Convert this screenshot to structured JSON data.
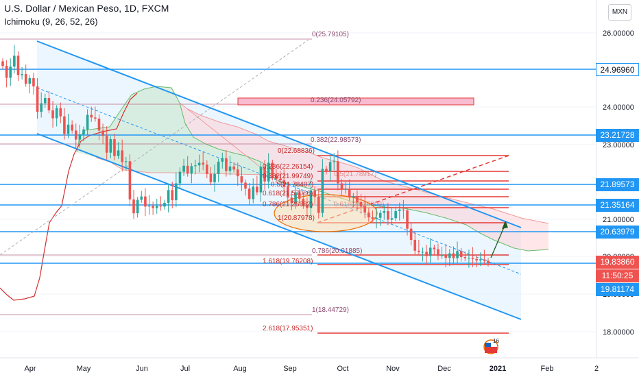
{
  "header": {
    "title": "U.S. Dollar / Mexican Peso, 1D, FXCM",
    "indicator": "Ichimoku (9, 26, 52, 26)",
    "currency": "MXN"
  },
  "colors": {
    "channel": "#2196f3",
    "fib": "#e53935",
    "cloud_bull": "#4caf50",
    "cloud_bear": "#f44336",
    "candle_up": "#26a69a",
    "candle_down": "#ef5350",
    "price_tag": "#ef5350",
    "level_tag": "#2196f3",
    "bg_fill": "#dbeefd"
  },
  "price_tags": {
    "last_price": "19.83860",
    "countdown": "11:50:25"
  },
  "chart_data": {
    "type": "candlestick",
    "title": "U.S. Dollar / Mexican Peso, 1D, FXCM",
    "ylim": [
      17.55,
      26.75
    ],
    "y_ticks": [
      "26.00000",
      "24.00000",
      "23.00000",
      "21.00000",
      "20.00000",
      "19.00000",
      "18.00000"
    ],
    "x_ticks": [
      "Apr",
      "May",
      "Jun",
      "Jul",
      "Aug",
      "Sep",
      "Oct",
      "Nov",
      "Dec",
      "2021",
      "Feb",
      "2"
    ],
    "horizontal_levels": [
      "24.96960",
      "23.21728",
      "21.89573",
      "21.35164",
      "20.63979",
      "19.81174"
    ],
    "fib_labels": [
      "0(25.79105)",
      "0.236(24.05792)",
      "0.382(22.98573)",
      "0(22.68836)",
      "0.236(22.26154)",
      "0.382(21.99749)",
      "0.5(21.78407)",
      "0.618(21.57066)",
      "0.786(21.26682)",
      "1(20.87978)",
      "0.786(20.01885)",
      "1.618(19.76208)",
      "1(18.44729)",
      "2.618(17.95351)"
    ],
    "fib_labels_faint": [
      "0.5(21.78917)",
      "0.618(21.26009)"
    ],
    "current_price": "19.83860",
    "series": [
      {
        "values": [
          25.12,
          24.8,
          25.1,
          25.39,
          24.87,
          24.9,
          24.64,
          24.79,
          24.57,
          23.89,
          24.12,
          24.26,
          23.93,
          23.72,
          23.99,
          23.77,
          23.3,
          23.55,
          23.39,
          23.15,
          23.29,
          23.42,
          23.81,
          23.74,
          23.71,
          23.39,
          23.25,
          22.8,
          23.16,
          22.71,
          22.86,
          22.55,
          22.57,
          21.55,
          21.18,
          21.54,
          21.63,
          21.36,
          21.38,
          21.32,
          21.38,
          21.36,
          21.46,
          21.8,
          21.53,
          21.98,
          22.29,
          22.45,
          22.24,
          22.44,
          22.46,
          22.53,
          22.48,
          22.23,
          22.01,
          22.23,
          22.56,
          22.65,
          22.31,
          22.43,
          22.35,
          22.17,
          22.0,
          21.84,
          21.56,
          21.89,
          21.74,
          22.42,
          22.03,
          22.53,
          22.21,
          22.1,
          22.06,
          21.89,
          21.6,
          21.45,
          21.74,
          21.57,
          21.38,
          21.32,
          21.79,
          21.62,
          21.19,
          22.37,
          22.3,
          22.55,
          22.57,
          21.98,
          21.82,
          21.83,
          21.6,
          21.64,
          21.48,
          21.36,
          21.2,
          21.07,
          21.03,
          21.06,
          21.19,
          21.24,
          21.01,
          21.05,
          21.24,
          21.28,
          21.26,
          20.77,
          20.47,
          20.18,
          20.15,
          20.15,
          20.04,
          20.26,
          20.22,
          20.04,
          20.07,
          19.99,
          20.11,
          19.98,
          20.17,
          20.01,
          19.98,
          19.99,
          19.96,
          19.92,
          19.95,
          19.91,
          19.84
        ]
      }
    ]
  }
}
